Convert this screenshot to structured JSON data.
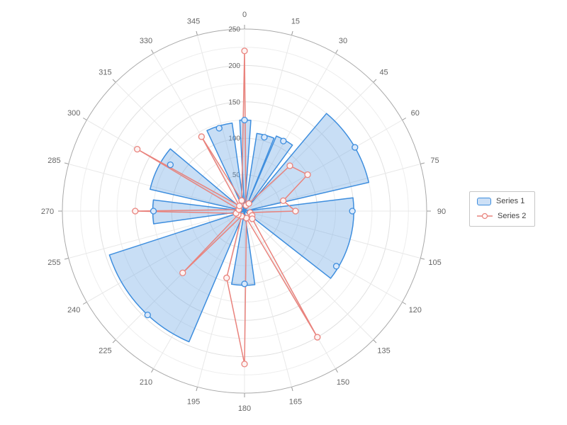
{
  "chart_data": {
    "type": "polar",
    "title": "",
    "angular_axis": {
      "direction": "clockwise",
      "start_at": "top",
      "tick_step_degrees": 15,
      "tick_labels": [
        "0",
        "15",
        "30",
        "45",
        "60",
        "75",
        "90",
        "105",
        "120",
        "135",
        "150",
        "165",
        "180",
        "195",
        "210",
        "225",
        "240",
        "255",
        "270",
        "285",
        "300",
        "315",
        "330",
        "345"
      ]
    },
    "radial_axis": {
      "min": 0,
      "max": 250,
      "major_step": 50,
      "minor_step": 25,
      "tick_labels": [
        "0",
        "50",
        "100",
        "150",
        "200",
        "250"
      ],
      "tick_values": [
        0,
        50,
        100,
        150,
        200,
        250
      ]
    },
    "grid": {
      "show": true,
      "minor_ring_color": "#ededed",
      "major_ring_color": "#e0e0e0",
      "outer_ring_color": "#a9a9a9",
      "spoke_color": "#e8e8e8",
      "tick_color": "#999999",
      "label_color": "#666666"
    },
    "series": [
      {
        "name": "Series 1",
        "type": "column-sectors",
        "stroke": "#3E8EDE",
        "fill": "rgba(117,172,230,0.40)",
        "fill_solid": "#cde0f6",
        "marker_fill": "#d9e8fa",
        "sectors": [
          {
            "a0": 357,
            "a1": 4,
            "r": 125
          },
          {
            "a0": 9,
            "a1": 22,
            "r": 108
          },
          {
            "a0": 23,
            "a1": 36,
            "r": 112
          },
          {
            "a0": 40,
            "a1": 77,
            "r": 175
          },
          {
            "a0": 83,
            "a1": 128,
            "r": 150
          },
          {
            "a0": 172,
            "a1": 190,
            "r": 102
          },
          {
            "a0": 203,
            "a1": 252,
            "r": 195
          },
          {
            "a0": 262,
            "a1": 277,
            "r": 126
          },
          {
            "a0": 283,
            "a1": 310,
            "r": 133
          },
          {
            "a0": 335,
            "a1": 352,
            "r": 122
          }
        ],
        "markers": [
          {
            "a": 0,
            "r": 125
          },
          {
            "a": 15,
            "r": 105
          },
          {
            "a": 29,
            "r": 110
          },
          {
            "a": 60,
            "r": 175
          },
          {
            "a": 90,
            "r": 148
          },
          {
            "a": 121,
            "r": 147
          },
          {
            "a": 180,
            "r": 100
          },
          {
            "a": 223,
            "r": 195
          },
          {
            "a": 270,
            "r": 125
          },
          {
            "a": 302,
            "r": 120
          },
          {
            "a": 343,
            "r": 119
          }
        ]
      },
      {
        "name": "Series 2",
        "type": "line",
        "stroke": "#E9837D",
        "marker_fill": "#fdf3f2",
        "points": [
          {
            "a": 0,
            "r": 220
          },
          {
            "a": 15,
            "r": 8
          },
          {
            "a": 30,
            "r": 12
          },
          {
            "a": 45,
            "r": 88
          },
          {
            "a": 60,
            "r": 100
          },
          {
            "a": 75,
            "r": 55
          },
          {
            "a": 90,
            "r": 70
          },
          {
            "a": 105,
            "r": 8
          },
          {
            "a": 120,
            "r": 12
          },
          {
            "a": 135,
            "r": 15
          },
          {
            "a": 150,
            "r": 200
          },
          {
            "a": 165,
            "r": 10
          },
          {
            "a": 180,
            "r": 210
          },
          {
            "a": 195,
            "r": 95
          },
          {
            "a": 210,
            "r": 8
          },
          {
            "a": 225,
            "r": 120
          },
          {
            "a": 240,
            "r": 10
          },
          {
            "a": 255,
            "r": 12
          },
          {
            "a": 270,
            "r": 150
          },
          {
            "a": 285,
            "r": 8
          },
          {
            "a": 300,
            "r": 170
          },
          {
            "a": 315,
            "r": 10
          },
          {
            "a": 330,
            "r": 118
          },
          {
            "a": 345,
            "r": 15
          }
        ]
      }
    ],
    "legend": {
      "position": "right",
      "items": [
        {
          "label": "Series 1"
        },
        {
          "label": "Series 2"
        }
      ]
    }
  }
}
